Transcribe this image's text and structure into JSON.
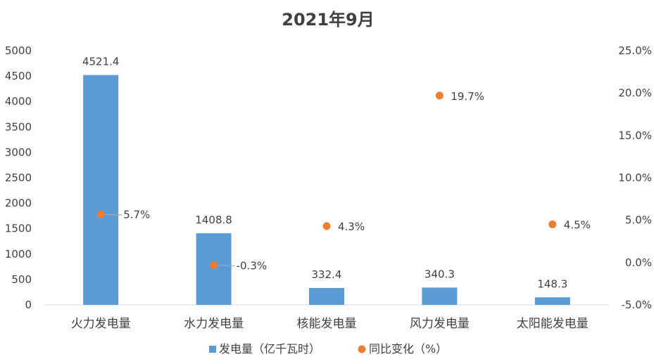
{
  "chart_data": {
    "type": "bar",
    "title": "2021年9月",
    "categories": [
      "火力发电量",
      "水力发电量",
      "核能发电量",
      "风力发电量",
      "太阳能发电量"
    ],
    "series": [
      {
        "name": "发电量（亿千瓦时）",
        "type": "bar",
        "axis": "left",
        "color": "#5B9BD5",
        "values": [
          4521.4,
          1408.8,
          332.4,
          340.3,
          148.3
        ],
        "labels": [
          "4521.4",
          "1408.8",
          "332.4",
          "340.3",
          "148.3"
        ]
      },
      {
        "name": "同比变化（%）",
        "type": "scatter",
        "axis": "right",
        "color": "#ED7D31",
        "values": [
          5.7,
          -0.3,
          4.3,
          19.7,
          4.5
        ],
        "labels": [
          "5.7%",
          "-0.3%",
          "4.3%",
          "19.7%",
          "4.5%"
        ]
      }
    ],
    "left_axis": {
      "ylim": [
        0,
        5000
      ],
      "ticks": [
        0,
        500,
        1000,
        1500,
        2000,
        2500,
        3000,
        3500,
        4000,
        4500,
        5000
      ],
      "tick_labels": [
        "0",
        "500",
        "1000",
        "1500",
        "2000",
        "2500",
        "3000",
        "3500",
        "4000",
        "4500",
        "5000"
      ]
    },
    "right_axis": {
      "ylim": [
        -5,
        25
      ],
      "ticks": [
        -5,
        0,
        5,
        10,
        15,
        20,
        25
      ],
      "tick_labels": [
        "-5.0%",
        "0.0%",
        "5.0%",
        "10.0%",
        "15.0%",
        "20.0%",
        "25.0%"
      ]
    },
    "grid": false,
    "legend_position": "bottom"
  }
}
